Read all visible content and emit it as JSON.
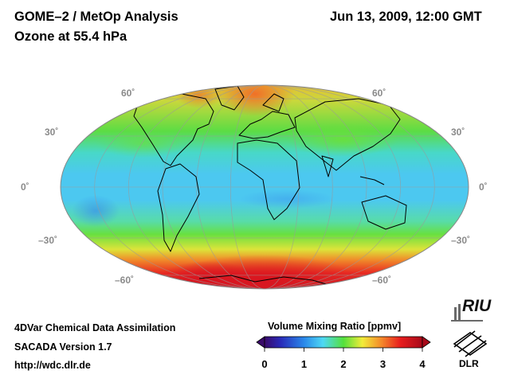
{
  "header": {
    "title_line1": "GOME–2 / MetOp Analysis",
    "title_line2": "Ozone at 55.4 hPa",
    "datetime": "Jun 13, 2009, 12:00 GMT"
  },
  "latitude_labels": {
    "n60": "60˚",
    "n30": "30˚",
    "eq": "0˚",
    "s30": "–30˚",
    "s60": "–60˚"
  },
  "colorbar": {
    "title": "Volume Mixing Ratio [ppmv]",
    "ticks": [
      "0",
      "1",
      "2",
      "3",
      "4"
    ],
    "min": 0,
    "max": 4
  },
  "footer": {
    "line1": "4DVar Chemical Data Assimilation",
    "line2": "SACADA Version 1.7",
    "line3": "http://wdc.dlr.de"
  },
  "logos": {
    "riu": "RIU",
    "dlr": "DLR"
  },
  "colors": {
    "purple": "#3a0a6a",
    "blue": "#2a78ea",
    "cyan": "#4ed4f4",
    "green": "#54e03c",
    "yellow": "#f2ec3a",
    "orange": "#f48a2a",
    "red": "#e81e1e",
    "darkred": "#b80e22"
  }
}
